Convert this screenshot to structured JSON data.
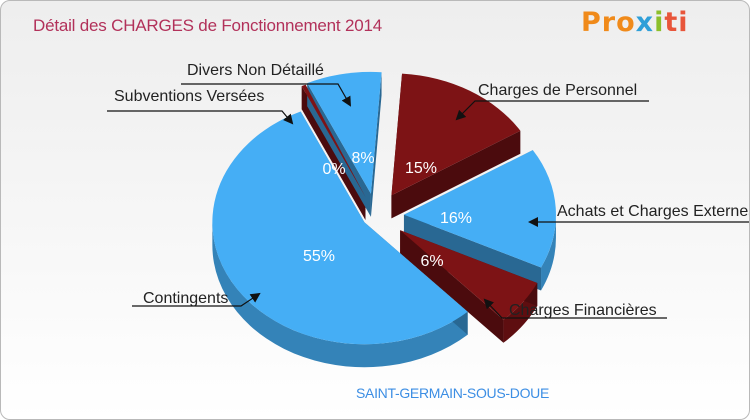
{
  "header": {
    "title": "Détail des CHARGES de Fonctionnement 2014",
    "logo": {
      "p1": "Pro",
      "p2": "x",
      "p3": "i",
      "p4": "ti"
    }
  },
  "subtitle": "SAINT-GERMAIN-SOUS-DOUE",
  "colors": {
    "blue": "#45aef5",
    "blue_side": "#2b8fd6",
    "red": "#7d1315",
    "red_side": "#55090b"
  },
  "chart_data": {
    "type": "pie",
    "title": "Détail des CHARGES de Fonctionnement 2014",
    "slices": [
      {
        "label": "Charges de Personnel",
        "value": 15,
        "pct_label": "15%",
        "color": "#7d1315"
      },
      {
        "label": "Achats et Charges Externes",
        "value": 16,
        "pct_label": "16%",
        "color": "#45aef5"
      },
      {
        "label": "Charges Financières",
        "value": 6,
        "pct_label": "6%",
        "color": "#7d1315"
      },
      {
        "label": "Contingents",
        "value": 55,
        "pct_label": "55%",
        "color": "#45aef5"
      },
      {
        "label": "Subventions Versées",
        "value": 0,
        "pct_label": "0%",
        "color": "#7d1315"
      },
      {
        "label": "Divers Non Détaillé",
        "value": 8,
        "pct_label": "8%",
        "color": "#45aef5"
      }
    ]
  }
}
